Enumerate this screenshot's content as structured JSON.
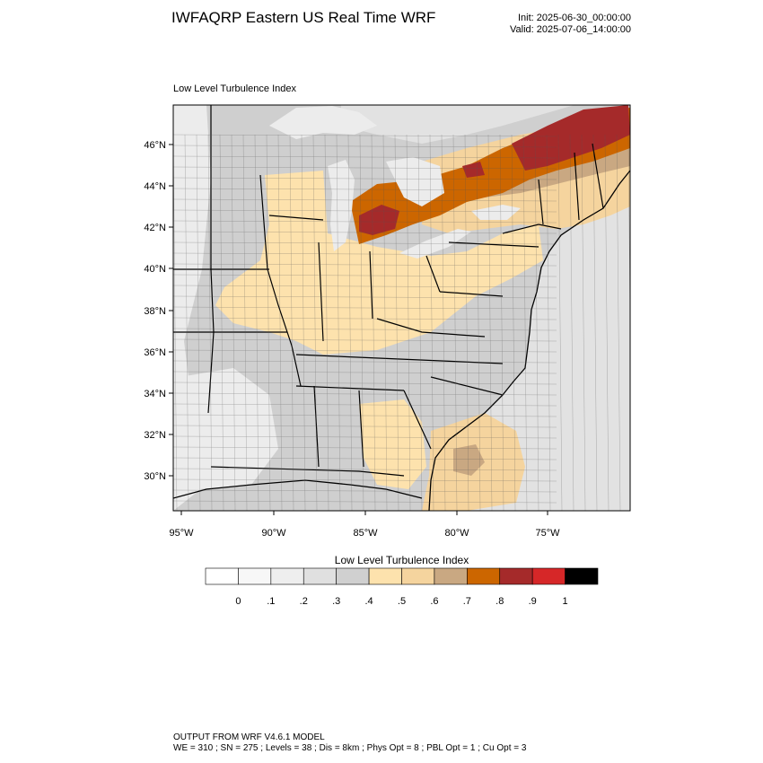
{
  "header": {
    "title": "IWFAQRP Eastern US Real Time WRF",
    "init": "Init: 2025-06-30_00:00:00",
    "valid": "Valid: 2025-07-06_14:00:00"
  },
  "map": {
    "field_label": "Low Level Turbulence Index",
    "lat_ticks": [
      "46°N",
      "44°N",
      "42°N",
      "40°N",
      "38°N",
      "36°N",
      "34°N",
      "32°N",
      "30°N"
    ],
    "lon_ticks": [
      "95°W",
      "90°W",
      "85°W",
      "80°W",
      "75°W"
    ],
    "colors": {
      "ocean": "#e2e2e2",
      "land_gray": "#cfcfcf",
      "land_light": "#ececec",
      "tan_light": "#fde2ad",
      "tan": "#f5d49e",
      "tan_dark": "#c9a882",
      "orange": "#cc6600",
      "red_brown": "#a52a2a",
      "red": "#d62728"
    }
  },
  "colorbar": {
    "title": "Low Level Turbulence Index",
    "labels": [
      "0",
      ".1",
      ".2",
      ".3",
      ".4",
      ".5",
      ".6",
      ".7",
      ".8",
      ".9",
      "1"
    ],
    "colors": [
      "#ffffff",
      "#f7f7f7",
      "#eeeeee",
      "#e0e0e0",
      "#d0d0d0",
      "#fde2ad",
      "#f5d49e",
      "#c9a882",
      "#cc6600",
      "#a52a2a",
      "#d62728",
      "#000000"
    ]
  },
  "footer": {
    "line1": "OUTPUT FROM WRF V4.6.1 MODEL",
    "line2": "WE = 310 ; SN = 275 ; Levels = 38 ; Dis = 8km ; Phys Opt = 8 ; PBL Opt = 1 ; Cu Opt = 3"
  }
}
